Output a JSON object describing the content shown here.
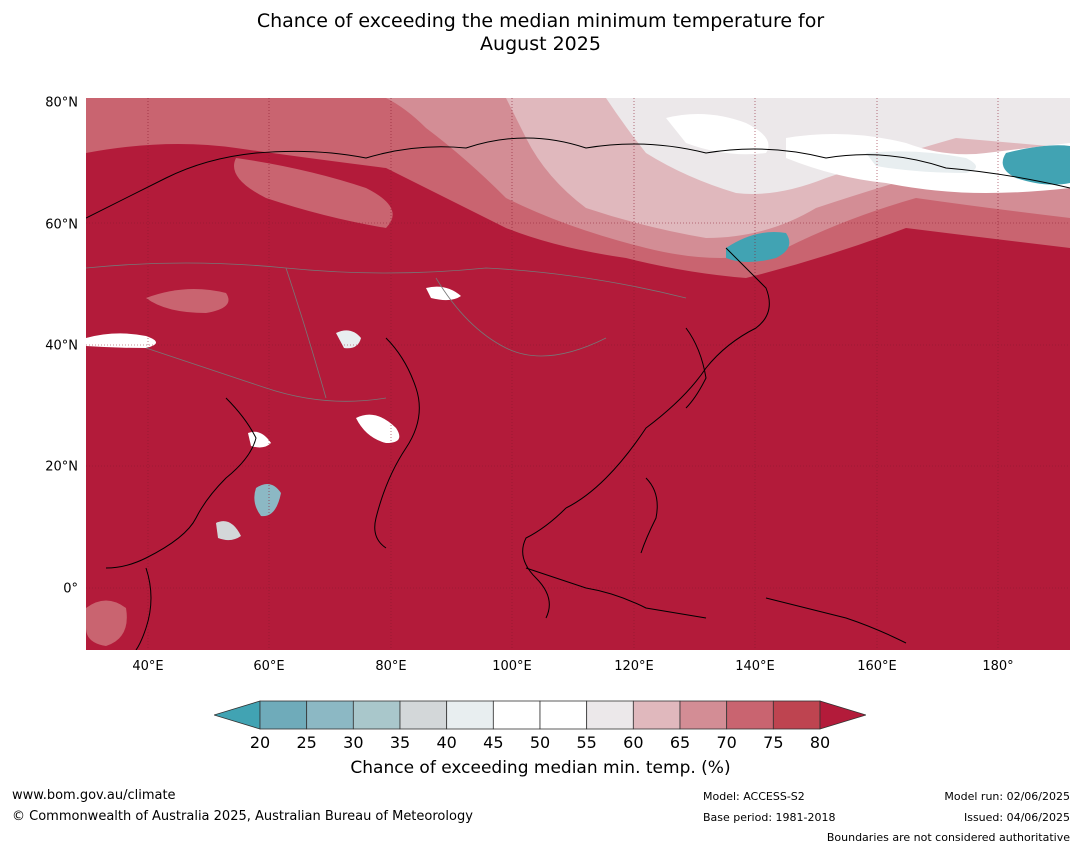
{
  "title_line1": "Chance of exceeding the median minimum temperature for",
  "title_line2": "August 2025",
  "lat_labels": [
    "80°N",
    "60°N",
    "40°N",
    "20°N",
    "0°"
  ],
  "lon_labels": [
    "40°E",
    "60°E",
    "80°E",
    "100°E",
    "120°E",
    "140°E",
    "160°E",
    "180°"
  ],
  "colorbar": {
    "ticks": [
      "20",
      "25",
      "30",
      "35",
      "40",
      "45",
      "50",
      "55",
      "60",
      "65",
      "70",
      "75",
      "80"
    ],
    "colors": [
      "#41a3b3",
      "#6fabba",
      "#8cb8c4",
      "#a9c7cb",
      "#d3d7d9",
      "#e8eef0",
      "#ffffff",
      "#ffffff",
      "#ece8ea",
      "#e0b8bd",
      "#d38d95",
      "#c96470",
      "#be4450",
      "#b31b3a"
    ],
    "label": "Chance of exceeding median min. temp. (%)"
  },
  "colors": {
    "dominant": "#b31b3a",
    "cool": "#41a3b3"
  },
  "footer": {
    "url": "www.bom.gov.au/climate",
    "copyright": "© Commonwealth of Australia 2025, Australian Bureau of Meteorology",
    "model": "Model: ACCESS-S2",
    "base_period": "Base period: 1981-2018",
    "model_run": "Model run: 02/06/2025",
    "issued": "Issued: 04/06/2025",
    "disclaimer": "Boundaries are not considered authoritative"
  }
}
